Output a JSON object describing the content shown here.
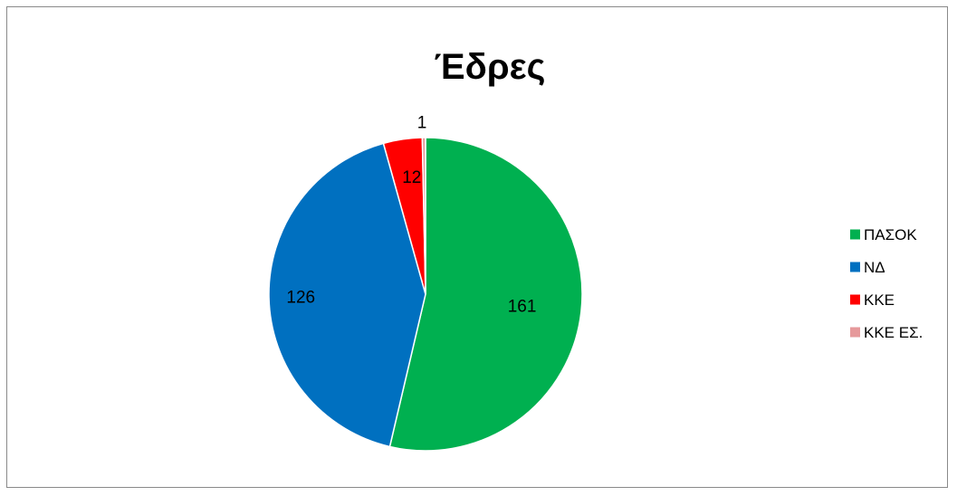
{
  "chart_data": {
    "type": "pie",
    "title": "Έδρες",
    "categories": [
      "ΠΑΣΟΚ",
      "ΝΔ",
      "ΚΚΕ",
      "ΚΚΕ ΕΣ."
    ],
    "values": [
      161,
      126,
      12,
      1
    ],
    "colors": [
      "#00B050",
      "#0070C0",
      "#FF0000",
      "#E6999B"
    ],
    "data_labels": [
      "161",
      "126",
      "12",
      "1"
    ],
    "legend_position": "right",
    "start_angle": "12 o'clock",
    "direction": "clockwise"
  }
}
